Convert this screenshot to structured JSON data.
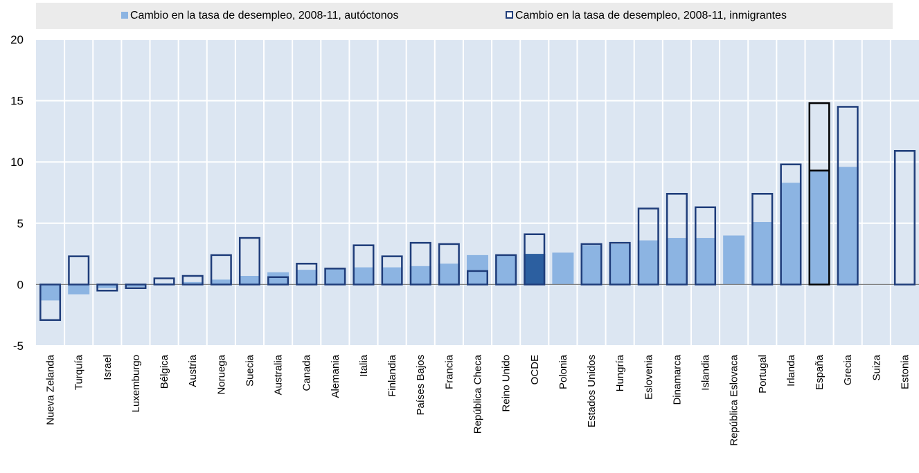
{
  "chart_data": {
    "type": "bar",
    "title": "",
    "xlabel": "",
    "ylabel": "",
    "ylim": [
      -5,
      20
    ],
    "yticks": [
      20,
      15,
      10,
      5,
      0,
      -5
    ],
    "grid": true,
    "legend_position": "top",
    "categories": [
      "Nueva Zelanda",
      "Turquía",
      "Israel",
      "Luxemburgo",
      "Bélgica",
      "Austria",
      "Noruega",
      "Suecia",
      "Australia",
      "Canada",
      "Alemania",
      "Italia",
      "Finlandia",
      "Países Bajos",
      "Francia",
      "República Checa",
      "Reino Unido",
      "OCDE",
      "Polonia",
      "Estados Unidos",
      "Hungría",
      "Eslovenia",
      "Dinamarca",
      "Islandia",
      "República Eslovaca",
      "Portugal",
      "Irlanda",
      "España",
      "Grecia",
      "Suiza",
      "Estonia"
    ],
    "series": [
      {
        "name": "Cambio en la tasa de desempleo, 2008-11, autóctonos",
        "style": "filled",
        "color": "#8cb4e2",
        "values": [
          -1.3,
          -0.8,
          -0.3,
          -0.2,
          0.1,
          0.2,
          0.4,
          0.7,
          1.0,
          1.2,
          1.3,
          1.4,
          1.4,
          1.5,
          1.7,
          2.4,
          2.4,
          2.5,
          2.6,
          3.2,
          3.3,
          3.6,
          3.8,
          3.8,
          4.0,
          5.1,
          8.3,
          9.3,
          9.6,
          null,
          null
        ]
      },
      {
        "name": "Cambio en la tasa de desempleo, 2008-11, inmigrantes",
        "style": "outline",
        "color": "#1f3d7a",
        "values": [
          -2.9,
          2.3,
          -0.5,
          -0.3,
          0.5,
          0.7,
          2.4,
          3.8,
          0.6,
          1.7,
          1.3,
          3.2,
          2.3,
          3.4,
          3.3,
          1.1,
          2.4,
          4.1,
          null,
          3.3,
          3.4,
          6.2,
          7.4,
          6.3,
          null,
          7.4,
          9.8,
          14.8,
          14.5,
          null,
          10.9
        ]
      }
    ],
    "highlight": {
      "OCDE": "#2c5fa0",
      "España": "#000000"
    }
  },
  "colors": {
    "plot_background": "#dce6f2",
    "gridline": "#ffffff",
    "autoctonos_fill": "#8cb4e2",
    "inmigrantes_outline": "#1f3d7a",
    "ocde_fill": "#2c5fa0",
    "espana_outline": "#000000",
    "axis_line": "#808080"
  }
}
